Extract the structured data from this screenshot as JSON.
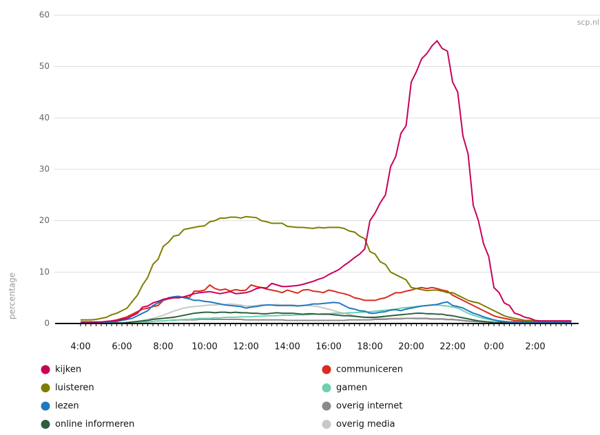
{
  "chart_data": {
    "type": "line",
    "source": "scp.nl",
    "y_label": "percentage",
    "categories": [
      "4:00",
      null,
      null,
      null,
      null,
      null,
      null,
      null,
      "6:00",
      null,
      null,
      null,
      null,
      null,
      null,
      null,
      "8:00",
      null,
      null,
      null,
      null,
      null,
      null,
      null,
      "10:00",
      null,
      null,
      null,
      null,
      null,
      null,
      null,
      "12:00",
      null,
      null,
      null,
      null,
      null,
      null,
      null,
      "14:00",
      null,
      null,
      null,
      null,
      null,
      null,
      null,
      "16:00",
      null,
      null,
      null,
      null,
      null,
      null,
      null,
      "18:00",
      null,
      null,
      null,
      null,
      null,
      null,
      null,
      "20:00",
      null,
      null,
      null,
      null,
      null,
      null,
      null,
      "22:00",
      null,
      null,
      null,
      null,
      null,
      null,
      null,
      "0:00",
      null,
      null,
      null,
      null,
      null,
      null,
      null,
      "2:00",
      null,
      null,
      null,
      null,
      null,
      null,
      null
    ],
    "ylim": [
      0,
      60
    ],
    "yticks": [
      0,
      10,
      20,
      30,
      40,
      50,
      60
    ],
    "grid": true,
    "series": [
      {
        "name": "kijken",
        "color": "#c8005a",
        "values": [
          0.3,
          0.3,
          0.3,
          0.3,
          0.3,
          0.4,
          0.5,
          0.6,
          0.8,
          1.0,
          1.5,
          2.0,
          3.2,
          3.4,
          4.0,
          4.3,
          4.7,
          4.9,
          5.0,
          5.0,
          5.2,
          5.5,
          5.8,
          6.0,
          6.1,
          6.2,
          6.0,
          5.8,
          6.0,
          6.2,
          5.8,
          5.9,
          6.0,
          6.3,
          6.8,
          7.0,
          6.9,
          7.8,
          7.5,
          7.2,
          7.2,
          7.3,
          7.4,
          7.6,
          7.9,
          8.2,
          8.6,
          8.9,
          9.5,
          10.0,
          10.5,
          11.3,
          12.0,
          12.8,
          13.5,
          14.5,
          20.0,
          21.5,
          23.5,
          25.0,
          30.5,
          32.5,
          37.0,
          38.5,
          47.0,
          49.0,
          51.5,
          52.5,
          54.0,
          55.0,
          53.5,
          53.0,
          47.0,
          45.0,
          36.5,
          33.0,
          23.0,
          20.0,
          15.5,
          13.0,
          7.0,
          6.0,
          4.0,
          3.5,
          2.0,
          1.7,
          1.2,
          1.0,
          0.6,
          0.5,
          0.5,
          0.5,
          0.5,
          0.5,
          0.5,
          0.5
        ]
      },
      {
        "name": "luisteren",
        "color": "#7d7d00",
        "values": [
          0.7,
          0.7,
          0.7,
          0.8,
          1.0,
          1.2,
          1.7,
          2.0,
          2.5,
          3.0,
          4.3,
          5.5,
          7.5,
          9.0,
          11.5,
          12.5,
          15.0,
          15.8,
          17.0,
          17.2,
          18.3,
          18.5,
          18.7,
          18.9,
          19.0,
          19.8,
          20.0,
          20.5,
          20.5,
          20.7,
          20.7,
          20.5,
          20.8,
          20.7,
          20.6,
          20.0,
          19.8,
          19.5,
          19.5,
          19.5,
          18.9,
          18.8,
          18.7,
          18.7,
          18.6,
          18.5,
          18.7,
          18.6,
          18.7,
          18.7,
          18.7,
          18.5,
          18.0,
          17.8,
          17.0,
          16.5,
          14.0,
          13.5,
          12.0,
          11.5,
          10.0,
          9.5,
          9.0,
          8.5,
          7.0,
          6.8,
          6.6,
          6.4,
          6.5,
          6.5,
          6.3,
          6.0,
          6.0,
          5.5,
          5.0,
          4.5,
          4.2,
          4.0,
          3.5,
          3.0,
          2.5,
          2.0,
          1.5,
          1.2,
          1.0,
          0.8,
          0.6,
          0.6,
          0.5,
          0.5,
          0.5,
          0.5,
          0.5,
          0.5,
          0.5,
          0.5
        ]
      },
      {
        "name": "lezen",
        "color": "#1f78c1",
        "values": [
          0.2,
          0.2,
          0.2,
          0.2,
          0.2,
          0.2,
          0.3,
          0.4,
          0.6,
          0.8,
          1.0,
          1.5,
          2.0,
          2.5,
          3.5,
          4.0,
          4.5,
          5.0,
          5.2,
          5.3,
          5.0,
          4.8,
          4.5,
          4.5,
          4.3,
          4.2,
          4.0,
          3.8,
          3.6,
          3.5,
          3.4,
          3.3,
          3.0,
          3.2,
          3.3,
          3.5,
          3.6,
          3.6,
          3.5,
          3.5,
          3.5,
          3.5,
          3.4,
          3.5,
          3.6,
          3.8,
          3.8,
          3.9,
          4.0,
          4.1,
          4.0,
          3.5,
          3.0,
          2.8,
          2.5,
          2.4,
          2.0,
          2.0,
          2.2,
          2.3,
          2.6,
          2.7,
          2.5,
          2.8,
          3.0,
          3.2,
          3.4,
          3.5,
          3.6,
          3.7,
          4.0,
          4.2,
          3.5,
          3.3,
          3.0,
          2.5,
          2.0,
          1.7,
          1.3,
          1.0,
          0.7,
          0.5,
          0.4,
          0.3,
          0.3,
          0.2,
          0.2,
          0.2,
          0.2,
          0.2,
          0.2,
          0.2,
          0.2,
          0.2,
          0.2,
          0.2
        ]
      },
      {
        "name": "online informeren",
        "color": "#2d5e3e",
        "values": [
          0.1,
          0.1,
          0.1,
          0.1,
          0.1,
          0.1,
          0.1,
          0.1,
          0.1,
          0.2,
          0.3,
          0.4,
          0.5,
          0.6,
          0.8,
          0.9,
          1.0,
          1.1,
          1.2,
          1.4,
          1.6,
          1.8,
          2.0,
          2.1,
          2.2,
          2.2,
          2.1,
          2.2,
          2.2,
          2.1,
          2.2,
          2.1,
          2.1,
          2.0,
          2.0,
          1.9,
          1.9,
          2.0,
          2.1,
          2.0,
          2.0,
          2.0,
          1.9,
          1.8,
          1.9,
          1.9,
          1.8,
          1.8,
          1.8,
          1.7,
          1.6,
          1.5,
          1.5,
          1.4,
          1.3,
          1.2,
          1.2,
          1.2,
          1.3,
          1.4,
          1.5,
          1.6,
          1.7,
          1.8,
          1.9,
          2.0,
          2.0,
          1.9,
          1.9,
          1.8,
          1.8,
          1.6,
          1.5,
          1.3,
          1.1,
          0.9,
          0.7,
          0.5,
          0.4,
          0.3,
          0.2,
          0.2,
          0.2,
          0.2,
          0.2,
          0.2,
          0.2,
          0.2,
          0.1,
          0.1,
          0.1,
          0.1,
          0.1,
          0.1,
          0.1,
          0.1
        ]
      },
      {
        "name": "communiceren",
        "color": "#d92b1f",
        "values": [
          0.2,
          0.2,
          0.2,
          0.2,
          0.3,
          0.4,
          0.5,
          0.7,
          1.0,
          1.3,
          1.8,
          2.3,
          2.8,
          3.0,
          3.3,
          3.5,
          4.5,
          4.8,
          5.0,
          5.0,
          5.2,
          5.0,
          6.3,
          6.3,
          6.5,
          7.5,
          6.8,
          6.5,
          6.7,
          6.3,
          6.6,
          6.4,
          6.5,
          7.5,
          7.2,
          7.0,
          6.7,
          6.5,
          6.3,
          6.0,
          6.5,
          6.2,
          5.9,
          6.5,
          6.6,
          6.3,
          6.2,
          6.0,
          6.5,
          6.3,
          6.0,
          5.8,
          5.5,
          5.0,
          4.8,
          4.5,
          4.5,
          4.5,
          4.8,
          5.0,
          5.5,
          6.0,
          6.0,
          6.3,
          6.5,
          6.8,
          7.0,
          6.8,
          7.0,
          6.8,
          6.5,
          6.3,
          5.5,
          5.0,
          4.5,
          4.0,
          3.5,
          3.0,
          2.5,
          2.0,
          1.5,
          1.2,
          1.0,
          0.8,
          0.6,
          0.5,
          0.4,
          0.4,
          0.3,
          0.3,
          0.3,
          0.3,
          0.3,
          0.3,
          0.3,
          0.3
        ]
      },
      {
        "name": "gamen",
        "color": "#6fd0b0",
        "values": [
          0.1,
          0.1,
          0.1,
          0.1,
          0.1,
          0.1,
          0.1,
          0.1,
          0.1,
          0.1,
          0.2,
          0.2,
          0.3,
          0.3,
          0.4,
          0.5,
          0.5,
          0.6,
          0.7,
          0.7,
          0.8,
          0.8,
          0.9,
          1.0,
          1.0,
          1.0,
          1.1,
          1.1,
          1.2,
          1.2,
          1.2,
          1.3,
          1.3,
          1.3,
          1.4,
          1.4,
          1.5,
          1.5,
          1.5,
          1.6,
          1.6,
          1.6,
          1.7,
          1.7,
          1.7,
          1.8,
          1.8,
          1.9,
          1.9,
          2.0,
          2.0,
          2.0,
          2.1,
          2.1,
          2.2,
          2.2,
          2.3,
          2.4,
          2.5,
          2.6,
          2.7,
          2.8,
          3.0,
          3.1,
          3.2,
          3.3,
          3.4,
          3.5,
          3.6,
          3.6,
          3.5,
          3.4,
          3.2,
          3.0,
          2.5,
          2.0,
          1.6,
          1.3,
          1.0,
          0.8,
          0.6,
          0.5,
          0.4,
          0.3,
          0.3,
          0.2,
          0.2,
          0.2,
          0.1,
          0.1,
          0.1,
          0.1,
          0.1,
          0.1,
          0.1,
          0.1
        ]
      },
      {
        "name": "overig internet",
        "color": "#8a8a8a",
        "values": [
          0.1,
          0.1,
          0.1,
          0.1,
          0.1,
          0.1,
          0.1,
          0.1,
          0.1,
          0.1,
          0.2,
          0.2,
          0.3,
          0.3,
          0.4,
          0.5,
          0.5,
          0.6,
          0.6,
          0.7,
          0.7,
          0.7,
          0.7,
          0.8,
          0.8,
          0.8,
          0.8,
          0.8,
          0.8,
          0.8,
          0.8,
          0.8,
          0.7,
          0.7,
          0.7,
          0.7,
          0.7,
          0.7,
          0.7,
          0.7,
          0.6,
          0.6,
          0.6,
          0.6,
          0.6,
          0.6,
          0.6,
          0.6,
          0.6,
          0.6,
          0.6,
          0.6,
          0.7,
          0.7,
          0.7,
          0.7,
          0.7,
          0.8,
          0.8,
          0.8,
          0.9,
          0.9,
          0.9,
          1.0,
          1.0,
          1.0,
          1.0,
          1.0,
          0.9,
          0.9,
          0.9,
          0.8,
          0.8,
          0.7,
          0.6,
          0.5,
          0.4,
          0.4,
          0.3,
          0.3,
          0.2,
          0.2,
          0.2,
          0.2,
          0.2,
          0.2,
          0.2,
          0.2,
          0.1,
          0.1,
          0.1,
          0.1,
          0.1,
          0.1,
          0.1,
          0.1
        ]
      },
      {
        "name": "overig media",
        "color": "#c8c8c8",
        "values": [
          0.1,
          0.1,
          0.1,
          0.1,
          0.1,
          0.1,
          0.1,
          0.1,
          0.1,
          0.2,
          0.3,
          0.4,
          0.6,
          0.8,
          1.0,
          1.3,
          1.6,
          2.0,
          2.4,
          2.7,
          3.0,
          3.2,
          3.3,
          3.4,
          3.5,
          3.6,
          3.6,
          3.7,
          3.7,
          3.8,
          3.7,
          3.6,
          3.4,
          3.4,
          3.5,
          3.6,
          3.6,
          3.6,
          3.7,
          3.6,
          3.6,
          3.6,
          3.5,
          3.5,
          3.5,
          3.4,
          3.3,
          3.0,
          2.8,
          2.5,
          2.2,
          2.0,
          1.8,
          1.5,
          1.3,
          1.2,
          1.1,
          1.0,
          1.0,
          1.0,
          1.0,
          1.0,
          1.0,
          1.0,
          1.0,
          0.9,
          0.9,
          0.9,
          0.8,
          0.8,
          0.8,
          0.7,
          0.7,
          0.6,
          0.5,
          0.4,
          0.4,
          0.3,
          0.3,
          0.2,
          0.2,
          0.2,
          0.2,
          0.2,
          0.2,
          0.2,
          0.2,
          0.2,
          0.1,
          0.1,
          0.1,
          0.1,
          0.1,
          0.1,
          0.1,
          0.1
        ]
      }
    ]
  }
}
